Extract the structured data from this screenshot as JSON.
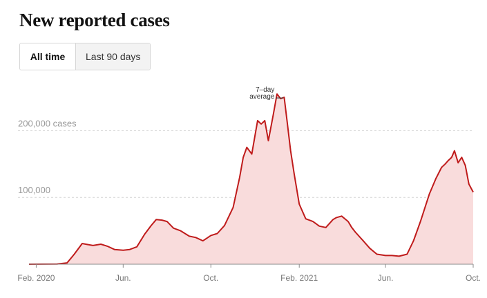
{
  "title": "New reported cases",
  "toggle": {
    "all_time": "All time",
    "last_90_days": "Last 90 days",
    "selected": "All time"
  },
  "colors": {
    "line": "#bf1b1b",
    "fill": "#f9dcdc",
    "grid": "#d4d4d4"
  },
  "chart_data": {
    "type": "area",
    "title": "New reported cases",
    "y_tick_labels": [
      {
        "value": 200000,
        "label": "200,000 cases"
      },
      {
        "value": 100000,
        "label": "100,000"
      }
    ],
    "x_tick_labels": [
      {
        "date": "2020-02-01",
        "label": "Feb. 2020"
      },
      {
        "date": "2020-06-01",
        "label": "Jun."
      },
      {
        "date": "2020-10-01",
        "label": "Oct."
      },
      {
        "date": "2021-02-01",
        "label": "Feb. 2021"
      },
      {
        "date": "2021-06-01",
        "label": "Jun."
      },
      {
        "date": "2021-10-01",
        "label": "Oct."
      }
    ],
    "ylim": [
      0,
      280000
    ],
    "xlim": [
      "2020-01-22",
      "2021-10-01"
    ],
    "annotation": {
      "lines": [
        "7–day",
        "average"
      ],
      "date": "2021-01-11"
    },
    "grid": true,
    "series": [
      {
        "x": [
          "2020-01-22",
          "2020-03-01",
          "2020-03-15",
          "2020-03-25",
          "2020-04-05",
          "2020-04-10",
          "2020-04-20",
          "2020-05-01",
          "2020-05-10",
          "2020-05-20",
          "2020-06-01",
          "2020-06-10",
          "2020-06-20",
          "2020-07-01",
          "2020-07-10",
          "2020-07-17",
          "2020-07-25",
          "2020-08-01",
          "2020-08-10",
          "2020-08-20",
          "2020-09-01",
          "2020-09-10",
          "2020-09-20",
          "2020-10-01",
          "2020-10-10",
          "2020-10-20",
          "2020-11-01",
          "2020-11-10",
          "2020-11-15",
          "2020-11-20",
          "2020-11-27",
          "2020-12-01",
          "2020-12-05",
          "2020-12-10",
          "2020-12-15",
          "2020-12-20",
          "2020-12-27",
          "2021-01-01",
          "2021-01-06",
          "2021-01-11",
          "2021-01-15",
          "2021-01-20",
          "2021-01-25",
          "2021-02-01",
          "2021-02-10",
          "2021-02-20",
          "2021-03-01",
          "2021-03-10",
          "2021-03-20",
          "2021-03-25",
          "2021-04-01",
          "2021-04-10",
          "2021-04-15",
          "2021-04-20",
          "2021-05-01",
          "2021-05-10",
          "2021-05-20",
          "2021-06-01",
          "2021-06-10",
          "2021-06-20",
          "2021-07-01",
          "2021-07-10",
          "2021-07-20",
          "2021-08-01",
          "2021-08-10",
          "2021-08-18",
          "2021-08-23",
          "2021-08-27",
          "2021-09-01",
          "2021-09-05",
          "2021-09-10",
          "2021-09-15",
          "2021-09-20",
          "2021-09-25",
          "2021-10-01"
        ],
        "values": [
          0,
          200,
          2000,
          15000,
          31000,
          30000,
          28000,
          30000,
          27000,
          22000,
          21000,
          22000,
          26000,
          45000,
          58000,
          67000,
          66000,
          64000,
          54000,
          50000,
          42000,
          40000,
          35000,
          43000,
          46000,
          58000,
          85000,
          130000,
          160000,
          175000,
          165000,
          190000,
          215000,
          210000,
          215000,
          185000,
          225000,
          255000,
          248000,
          250000,
          215000,
          170000,
          135000,
          90000,
          68000,
          64000,
          57000,
          55000,
          67000,
          70000,
          72000,
          64000,
          55000,
          48000,
          35000,
          24000,
          15000,
          13000,
          13000,
          12000,
          15000,
          35000,
          65000,
          105000,
          128000,
          145000,
          150000,
          155000,
          160000,
          170000,
          152000,
          160000,
          148000,
          120000,
          108000
        ]
      }
    ]
  }
}
